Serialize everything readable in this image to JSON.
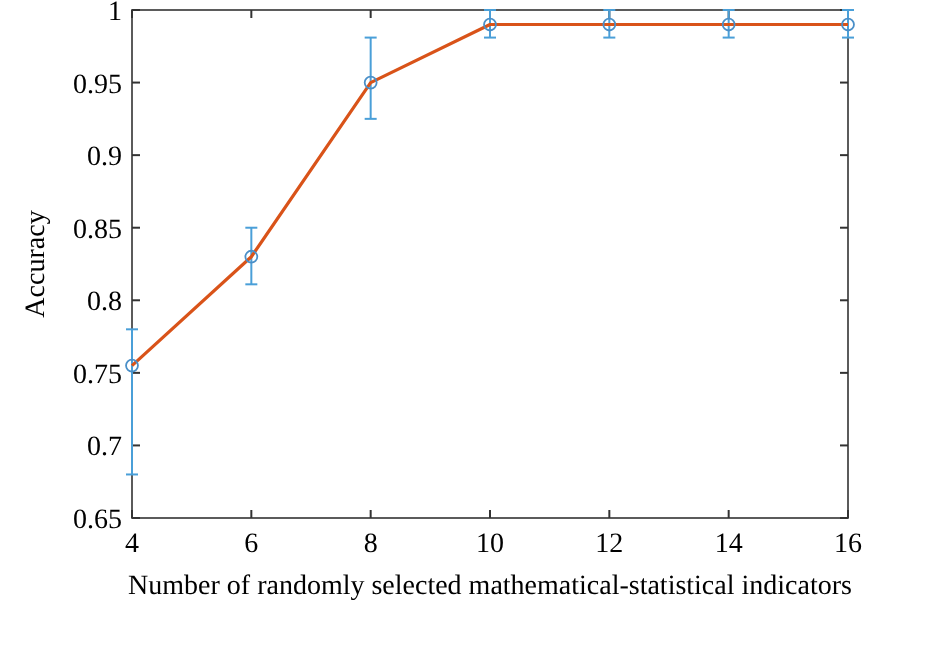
{
  "chart_data": {
    "type": "line",
    "xlabel": "Number of randomly selected mathematical-statistical indicators",
    "ylabel": "Accuracy",
    "x": [
      4,
      6,
      8,
      10,
      12,
      14,
      16
    ],
    "series": [
      {
        "color": "#d95319",
        "values": [
          0.755,
          0.83,
          0.95,
          0.99,
          0.99,
          0.99,
          0.99
        ],
        "errors": [
          [
            0.68,
            0.78
          ],
          [
            0.811,
            0.85
          ],
          [
            0.925,
            0.981
          ],
          [
            0.981,
            1.0
          ],
          [
            0.981,
            1.0
          ],
          [
            0.981,
            1.0
          ],
          [
            0.981,
            1.0
          ]
        ]
      }
    ],
    "xlim": [
      4,
      16
    ],
    "xticks": [
      4,
      6,
      8,
      10,
      12,
      14,
      16
    ],
    "ylim": [
      0.65,
      1
    ],
    "yticks": [
      0.65,
      0.7,
      0.75,
      0.8,
      0.85,
      0.9,
      0.95,
      1
    ],
    "marker": "circle",
    "grid": false
  }
}
